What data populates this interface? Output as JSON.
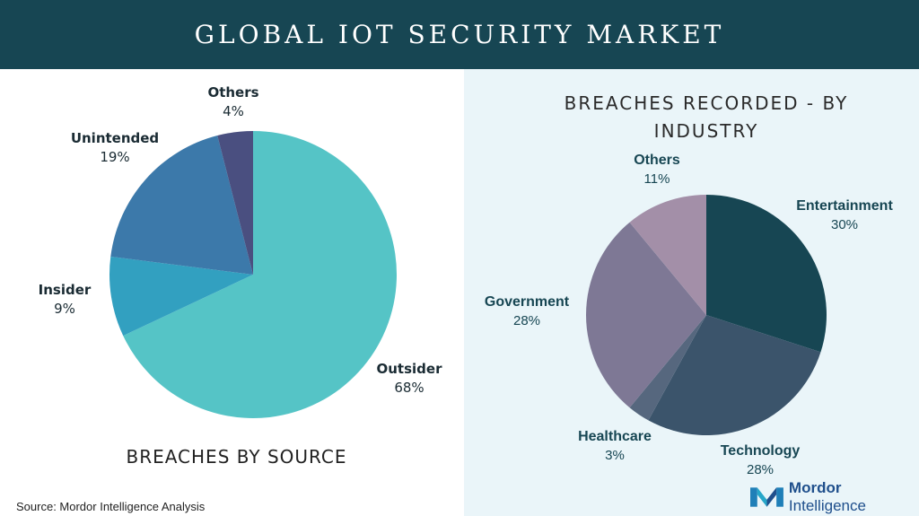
{
  "header": {
    "title": "GLOBAL IOT SECURITY MARKET"
  },
  "colors": {
    "header_bg": "#174653",
    "right_panel_bg": "#eaf5f9"
  },
  "chart_data": [
    {
      "type": "pie",
      "title": "BREACHES BY SOURCE",
      "slices": [
        {
          "label": "Outsider",
          "value": 68,
          "display": "68%",
          "color": "#55c4c6"
        },
        {
          "label": "Insider",
          "value": 9,
          "display": "9%",
          "color": "#32a0c0"
        },
        {
          "label": "Unintended",
          "value": 19,
          "display": "19%",
          "color": "#3c79aa"
        },
        {
          "label": "Others",
          "value": 4,
          "display": "4%",
          "color": "#4a4f80"
        }
      ]
    },
    {
      "type": "pie",
      "title": "BREACHES RECORDED - BY INDUSTRY",
      "slices": [
        {
          "label": "Entertainment",
          "value": 30,
          "display": "30%",
          "color": "#174653"
        },
        {
          "label": "Technology",
          "value": 28,
          "display": "28%",
          "color": "#3b546b"
        },
        {
          "label": "Healthcare",
          "value": 3,
          "display": "3%",
          "color": "#56677e"
        },
        {
          "label": "Government",
          "value": 28,
          "display": "28%",
          "color": "#7e7895"
        },
        {
          "label": "Others",
          "value": 11,
          "display": "11%",
          "color": "#a38fa8"
        }
      ]
    }
  ],
  "footer": {
    "source": "Source: Mordor Intelligence Analysis",
    "logo_word1": "Mordor",
    "logo_word2": "Intelligence"
  }
}
